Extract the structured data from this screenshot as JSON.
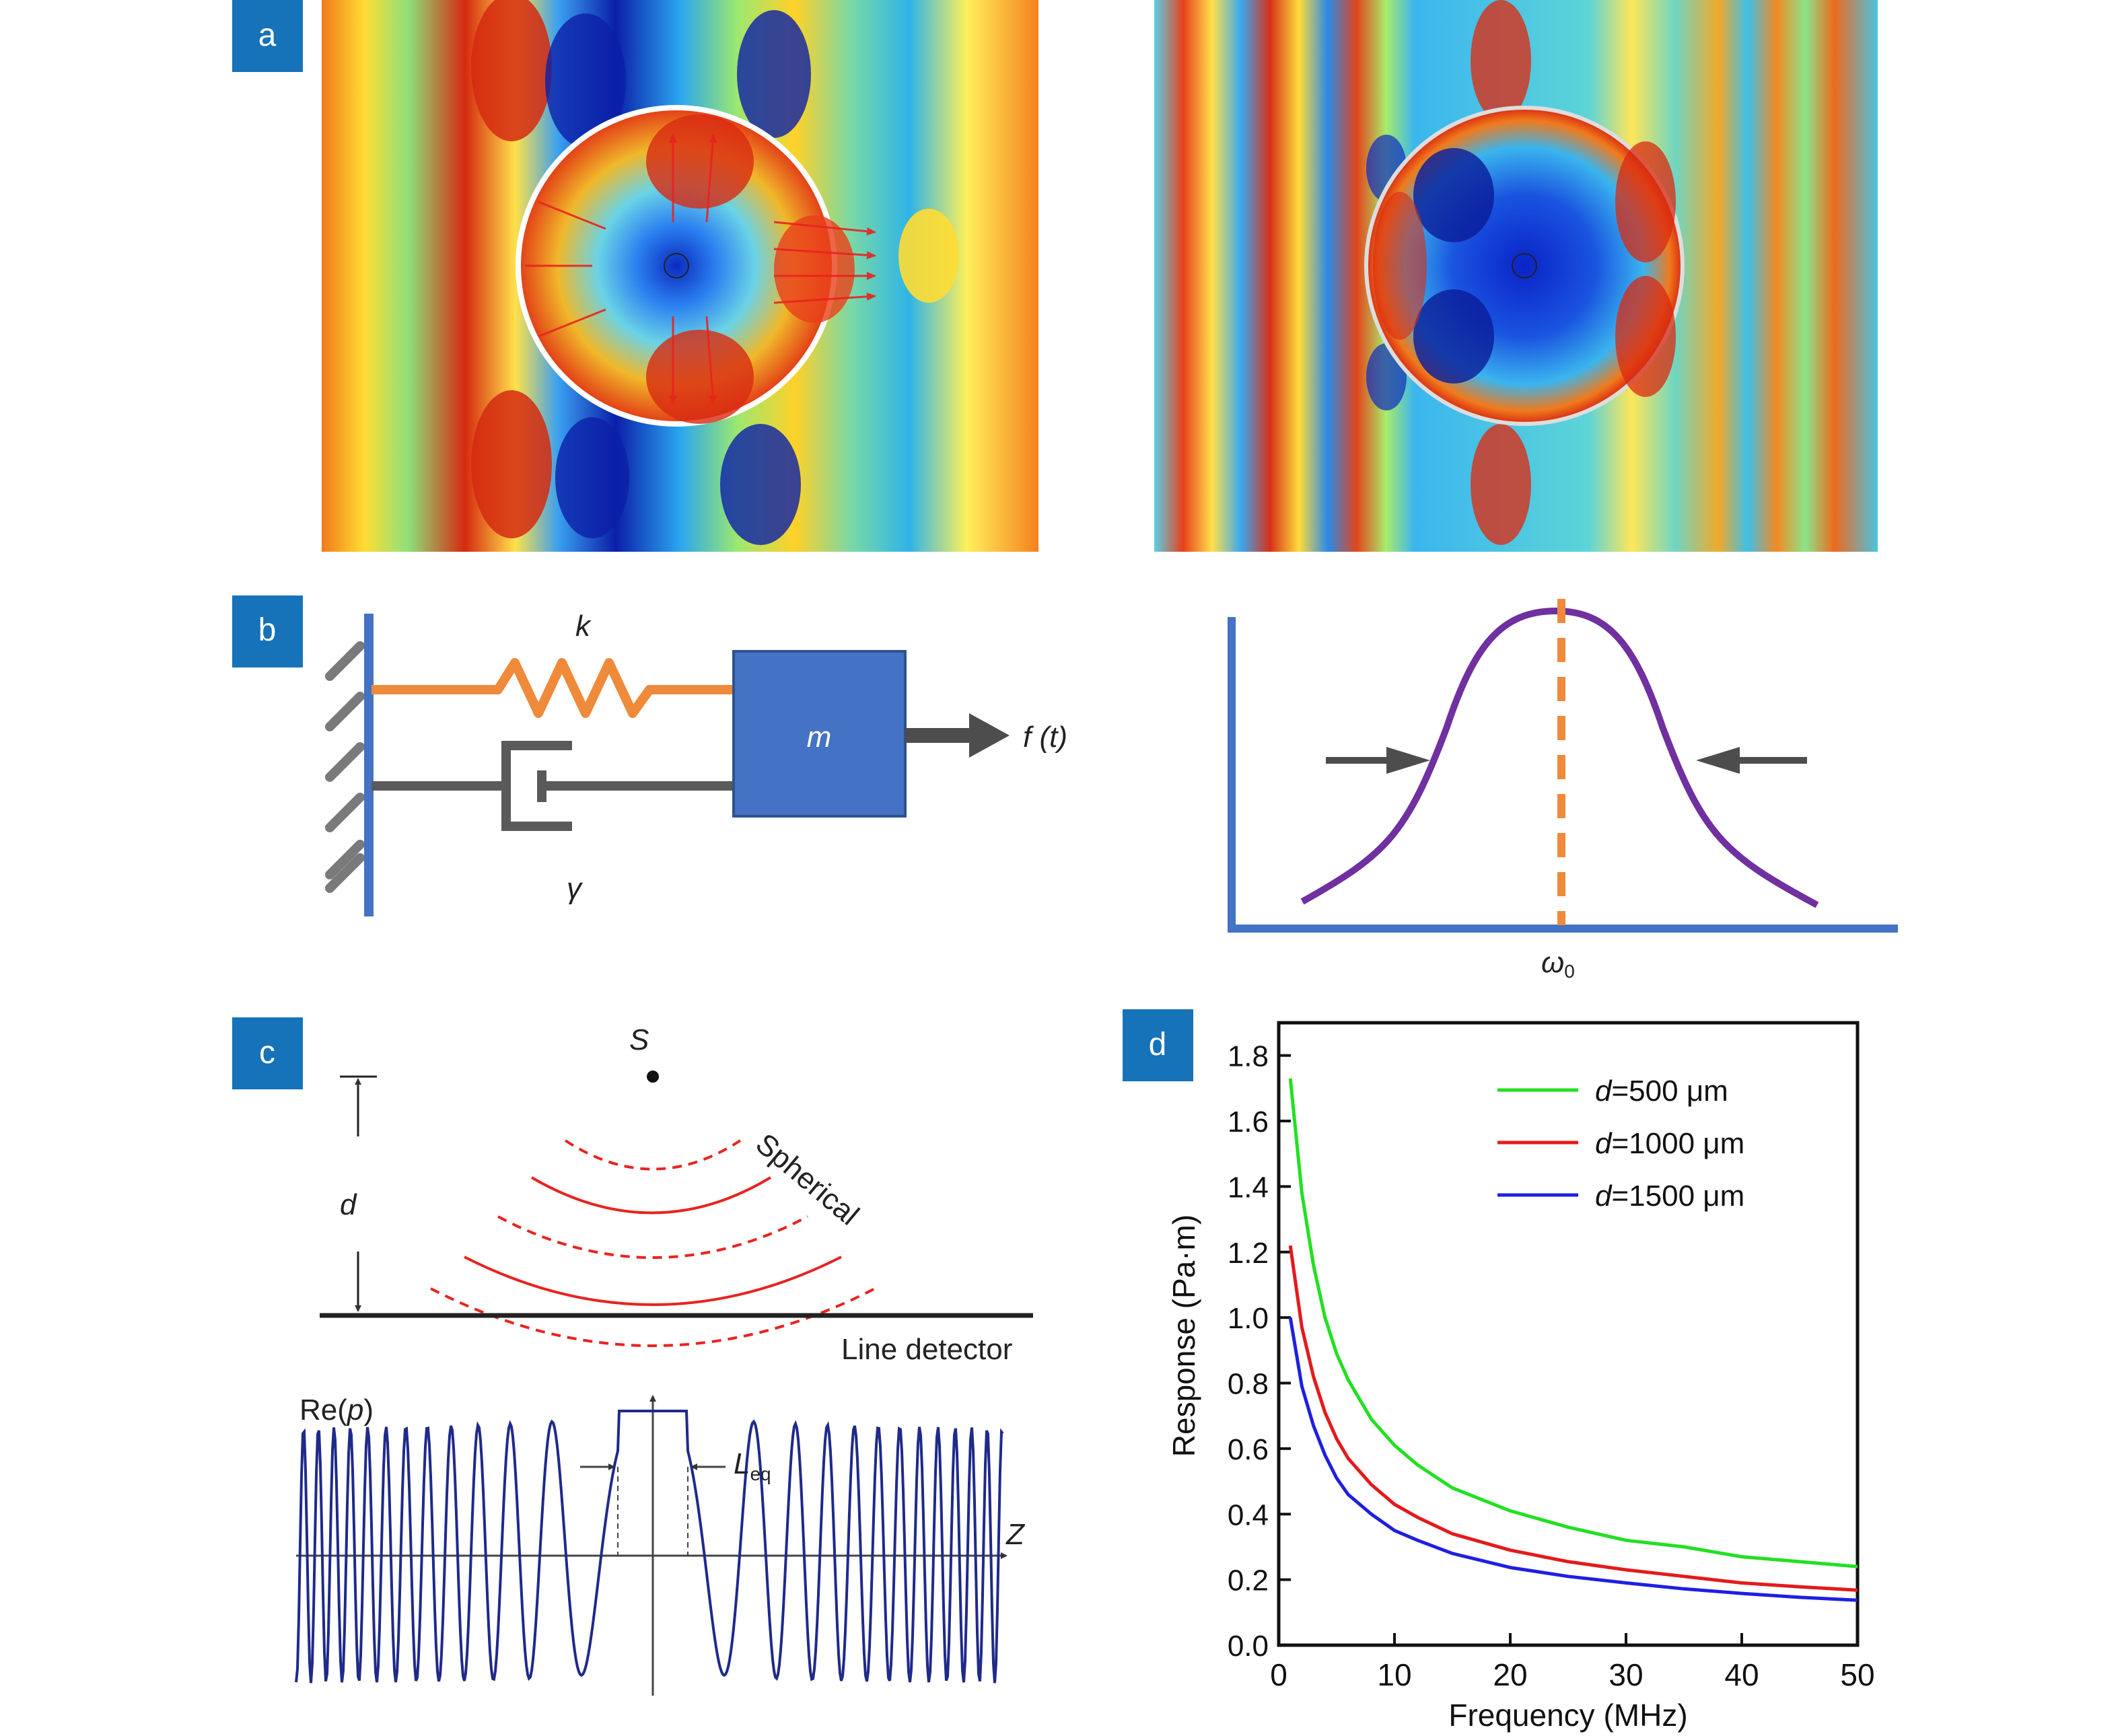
{
  "panels": {
    "a": {
      "badge": "a"
    },
    "b": {
      "badge": "b",
      "spring_label": "k",
      "damper_label": "γ",
      "mass_label": "m",
      "force_label": "f (t)",
      "resonance_label": "ω",
      "resonance_sub": "0"
    },
    "c": {
      "badge": "c",
      "source_label": "S",
      "distance_label": "d",
      "wave_label": "Spherical",
      "detector_label": "Line detector",
      "signal_label_prefix": "Re(",
      "signal_label_var": "p",
      "signal_label_suffix": ")",
      "length_label": "L",
      "length_sub": "eq",
      "axis_label": "Z"
    },
    "d": {
      "badge": "d"
    }
  },
  "colors": {
    "badge": "#1672b9",
    "spring": "#ef8a3b",
    "mass": "#4472c4",
    "mass_border": "#2f528f",
    "curve": "#7030a0",
    "axis_blue": "#4472c4",
    "dash_orange": "#ef8a3b",
    "wave_red": "#e8231f",
    "signal": "#1f2a8a"
  },
  "chart_data": {
    "type": "line",
    "xlabel": "Frequency (MHz)",
    "ylabel": "Response (Pa·m)",
    "xlim": [
      0,
      50
    ],
    "ylim": [
      0.0,
      1.9
    ],
    "xticks": [
      0,
      10,
      20,
      30,
      40,
      50
    ],
    "yticks": [
      0.0,
      0.2,
      0.4,
      0.6,
      0.8,
      1.0,
      1.2,
      1.4,
      1.6,
      1.8
    ],
    "ytick_labels": [
      "0.0",
      "0.2",
      "0.4",
      "0.6",
      "0.8",
      "1.0",
      "1.2",
      "1.4",
      "1.6",
      "1.8"
    ],
    "legend_position": "top-right",
    "series": [
      {
        "name": "d=500 μm",
        "name_var": "d",
        "name_rest": "=500 μm",
        "color": "#22e022",
        "x": [
          1,
          2,
          3,
          4,
          5,
          6,
          8,
          10,
          12,
          15,
          20,
          25,
          30,
          35,
          40,
          45,
          50
        ],
        "y": [
          1.73,
          1.38,
          1.16,
          1.0,
          0.89,
          0.81,
          0.69,
          0.61,
          0.55,
          0.48,
          0.41,
          0.36,
          0.32,
          0.3,
          0.27,
          0.255,
          0.24
        ]
      },
      {
        "name": "d=1000 μm",
        "name_var": "d",
        "name_rest": "=1000 μm",
        "color": "#e31a1c",
        "x": [
          1,
          2,
          3,
          4,
          5,
          6,
          8,
          10,
          12,
          15,
          20,
          25,
          30,
          35,
          40,
          45,
          50
        ],
        "y": [
          1.22,
          0.97,
          0.82,
          0.71,
          0.63,
          0.57,
          0.49,
          0.43,
          0.39,
          0.34,
          0.29,
          0.255,
          0.23,
          0.21,
          0.19,
          0.178,
          0.168
        ]
      },
      {
        "name": "d=1500 μm",
        "name_var": "d",
        "name_rest": "=1500 μm",
        "color": "#1f1fe0",
        "x": [
          1,
          2,
          3,
          4,
          5,
          6,
          8,
          10,
          12,
          15,
          20,
          25,
          30,
          35,
          40,
          45,
          50
        ],
        "y": [
          1.0,
          0.79,
          0.67,
          0.58,
          0.51,
          0.46,
          0.4,
          0.35,
          0.32,
          0.28,
          0.237,
          0.21,
          0.19,
          0.172,
          0.158,
          0.146,
          0.137
        ]
      }
    ]
  }
}
